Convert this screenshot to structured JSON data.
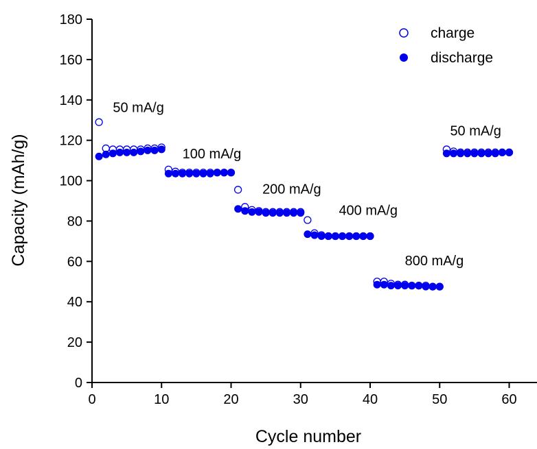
{
  "chart_data": {
    "type": "scatter",
    "xlabel": "Cycle number",
    "ylabel": "Capacity (mAh/g)",
    "xlim": [
      0,
      64
    ],
    "ylim": [
      0,
      180
    ],
    "xticks": [
      0,
      10,
      20,
      30,
      40,
      50,
      60
    ],
    "yticks": [
      0,
      20,
      40,
      60,
      80,
      100,
      120,
      140,
      160,
      180
    ],
    "grid": false,
    "legend_position": "top-right",
    "colors": {
      "series": "#0000ee",
      "axis": "#000000"
    },
    "series": [
      {
        "name": "charge",
        "marker": "open-circle",
        "x": [
          1,
          2,
          3,
          4,
          5,
          6,
          7,
          8,
          9,
          10,
          11,
          12,
          13,
          14,
          15,
          16,
          17,
          18,
          19,
          20,
          21,
          22,
          23,
          24,
          25,
          26,
          27,
          28,
          29,
          30,
          31,
          32,
          33,
          34,
          35,
          36,
          37,
          38,
          39,
          40,
          41,
          42,
          43,
          44,
          45,
          46,
          47,
          48,
          49,
          50,
          51,
          52,
          53,
          54,
          55,
          56,
          57,
          58,
          59,
          60
        ],
        "y": [
          129,
          116,
          115.5,
          115.5,
          115.5,
          115.5,
          115.5,
          116,
          116,
          116.5,
          105.5,
          104.5,
          104,
          104,
          104,
          104,
          104,
          104,
          104,
          104,
          95.5,
          87,
          85.5,
          85,
          84.5,
          84.5,
          84.5,
          84.5,
          84.5,
          84.5,
          80.5,
          74,
          73,
          72.5,
          72.5,
          72.5,
          72.5,
          72.5,
          72.5,
          72.5,
          50,
          50,
          49,
          48.5,
          48.5,
          48,
          48,
          48,
          47.5,
          47.5,
          115.5,
          114.5,
          114,
          114,
          114,
          114,
          114,
          114,
          114,
          114
        ]
      },
      {
        "name": "discharge",
        "marker": "filled-circle",
        "x": [
          1,
          2,
          3,
          4,
          5,
          6,
          7,
          8,
          9,
          10,
          11,
          12,
          13,
          14,
          15,
          16,
          17,
          18,
          19,
          20,
          21,
          22,
          23,
          24,
          25,
          26,
          27,
          28,
          29,
          30,
          31,
          32,
          33,
          34,
          35,
          36,
          37,
          38,
          39,
          40,
          41,
          42,
          43,
          44,
          45,
          46,
          47,
          48,
          49,
          50,
          51,
          52,
          53,
          54,
          55,
          56,
          57,
          58,
          59,
          60
        ],
        "y": [
          112,
          113,
          113.5,
          114,
          114,
          114,
          114.5,
          115,
          115,
          115.5,
          103.5,
          103.5,
          103.5,
          103.5,
          103.5,
          103.5,
          103.5,
          104,
          104,
          104,
          86,
          85,
          84.5,
          84.5,
          84,
          84,
          84,
          84,
          84,
          84,
          73.5,
          73,
          72.5,
          72.5,
          72.5,
          72.5,
          72.5,
          72.5,
          72.5,
          72.5,
          48.5,
          48.5,
          48,
          48,
          48,
          48,
          48,
          47.5,
          47.5,
          47.5,
          113.5,
          113.5,
          113.5,
          113.5,
          113.5,
          113.5,
          113.5,
          113.5,
          114,
          114
        ]
      }
    ],
    "annotations": [
      {
        "text": "50 mA/g",
        "x": 3,
        "y": 134
      },
      {
        "text": "100 mA/g",
        "x": 13,
        "y": 111
      },
      {
        "text": "200 mA/g",
        "x": 24.5,
        "y": 93.5
      },
      {
        "text": "400 mA/g",
        "x": 35.5,
        "y": 83
      },
      {
        "text": "800 mA/g",
        "x": 45,
        "y": 58
      },
      {
        "text": "50 mA/g",
        "x": 51.5,
        "y": 122.5
      }
    ]
  }
}
